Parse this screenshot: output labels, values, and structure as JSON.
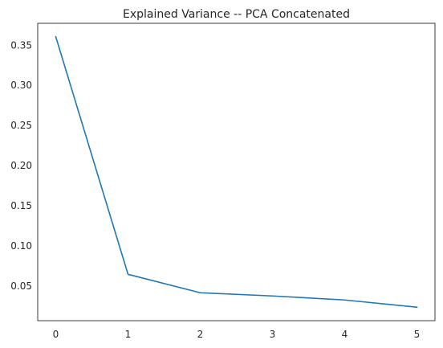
{
  "chart_data": {
    "type": "line",
    "title": "Explained Variance -- PCA Concatenated",
    "xlabel": "",
    "ylabel": "",
    "x": [
      0,
      1,
      2,
      3,
      4,
      5
    ],
    "series": [
      {
        "values": [
          0.36,
          0.064,
          0.041,
          0.037,
          0.032,
          0.023
        ],
        "color": "#1f77b4"
      }
    ],
    "xlim": [
      -0.25,
      5.25
    ],
    "ylim": [
      0.0062,
      0.3768
    ],
    "xticks": [
      0,
      1,
      2,
      3,
      4,
      5
    ],
    "xtick_labels": [
      "0",
      "1",
      "2",
      "3",
      "4",
      "5"
    ],
    "yticks": [
      0.05,
      0.1,
      0.15,
      0.2,
      0.25,
      0.3,
      0.35
    ],
    "ytick_labels": [
      "0.05",
      "0.10",
      "0.15",
      "0.20",
      "0.25",
      "0.30",
      "0.35"
    ],
    "grid": false,
    "legend": "none"
  }
}
